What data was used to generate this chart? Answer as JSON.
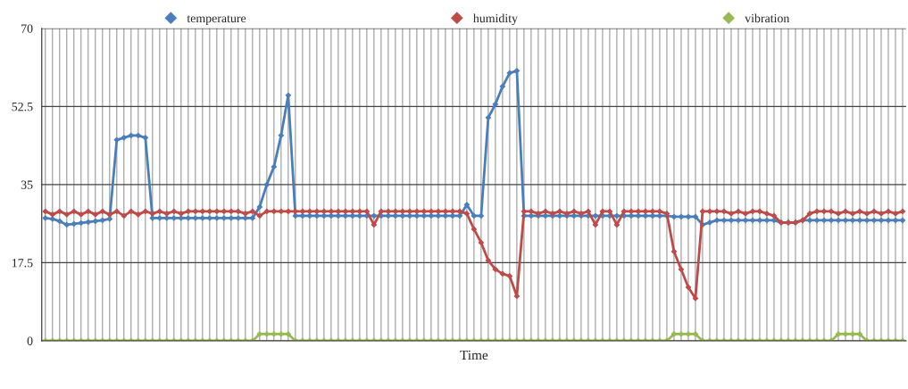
{
  "chart_data": {
    "type": "line",
    "xlabel": "Time",
    "categories": [
      null,
      null,
      null,
      null,
      null,
      null,
      null,
      null,
      null,
      null,
      null,
      null,
      null,
      null,
      null,
      null,
      null,
      null,
      null,
      null,
      null,
      null,
      null,
      null,
      null,
      null,
      null,
      null,
      null,
      null,
      null,
      null,
      null,
      null,
      null,
      null,
      null,
      null,
      null,
      null,
      null,
      null,
      null,
      null,
      null,
      null,
      null,
      null,
      null,
      null,
      null,
      null,
      null,
      null,
      null,
      null,
      null,
      null,
      null,
      null,
      null,
      null,
      null,
      null,
      null,
      null,
      null,
      null,
      null,
      null,
      null,
      null,
      null,
      null,
      null,
      null,
      null,
      null,
      null,
      null,
      null,
      null,
      null,
      null,
      null,
      null,
      null,
      null,
      null,
      null,
      null,
      null,
      null,
      null,
      null,
      null,
      null,
      null,
      null,
      null,
      null,
      null,
      null,
      null,
      null,
      null,
      null,
      null,
      null,
      null,
      null,
      null,
      null,
      null,
      null,
      null,
      null,
      null,
      null,
      null,
      null
    ],
    "series": [
      {
        "name": "temperature",
        "color": "#4a7ebb",
        "values": [
          27.5,
          27.3,
          26.8,
          26,
          26.2,
          26.4,
          26.6,
          26.8,
          27,
          27.3,
          45,
          45.5,
          46,
          46,
          45.5,
          27.5,
          27.5,
          27.5,
          27.5,
          27.5,
          27.5,
          27.5,
          27.5,
          27.5,
          27.5,
          27.5,
          27.5,
          27.5,
          27.5,
          27.5,
          30,
          35,
          39,
          46,
          55,
          28,
          28,
          28,
          28,
          28,
          28,
          28,
          28,
          28,
          28,
          28,
          28,
          28,
          28,
          28,
          28,
          28,
          28,
          28,
          28,
          28,
          28,
          28,
          28,
          30.5,
          28,
          28,
          50,
          53,
          57,
          60,
          60.5,
          28,
          28,
          28,
          28,
          28,
          28,
          28,
          28,
          28,
          28,
          28,
          28,
          28,
          28,
          28,
          28,
          28,
          28,
          28,
          28,
          28,
          27.8,
          27.8,
          27.8,
          27.8,
          26,
          26.5,
          27,
          27,
          27,
          27,
          27,
          27,
          27,
          27,
          27,
          26.5,
          26.5,
          26.5,
          27,
          27,
          27,
          27,
          27,
          27,
          27,
          27,
          27,
          27,
          27,
          27,
          27,
          27,
          27
        ]
      },
      {
        "name": "humidity",
        "color": "#be4b48",
        "values": [
          29,
          28.3,
          29,
          28.3,
          29,
          28.3,
          29,
          28.3,
          29,
          28.3,
          29,
          28,
          29,
          28.3,
          29,
          28.5,
          29,
          28.5,
          29,
          28.5,
          29,
          29,
          29,
          29,
          29,
          29,
          29,
          29,
          28.5,
          29,
          28,
          29,
          29,
          29,
          29,
          29,
          29,
          29,
          29,
          29,
          29,
          29,
          29,
          29,
          29,
          29,
          26,
          29,
          29,
          29,
          29,
          29,
          29,
          29,
          29,
          29,
          29,
          29,
          29,
          28.5,
          25,
          22,
          18,
          16,
          15,
          14.5,
          10,
          29,
          29,
          28.5,
          29,
          28.5,
          29,
          28.5,
          29,
          28.5,
          29,
          26,
          29,
          29,
          26,
          29,
          29,
          29,
          29,
          29,
          29,
          28.5,
          20,
          16,
          12,
          9.5,
          29,
          29,
          29,
          29,
          28.5,
          29,
          28.5,
          29,
          29,
          28.5,
          28,
          26.5,
          26.5,
          26.5,
          27,
          28.5,
          29,
          29,
          29,
          28.5,
          29,
          28.5,
          29,
          28.5,
          29,
          28.5,
          29,
          28.5,
          29
        ]
      },
      {
        "name": "vibration",
        "color": "#98b954",
        "values": [
          0,
          0,
          0,
          0,
          0,
          0,
          0,
          0,
          0,
          0,
          0,
          0,
          0,
          0,
          0,
          0,
          0,
          0,
          0,
          0,
          0,
          0,
          0,
          0,
          0,
          0,
          0,
          0,
          0,
          0,
          1.5,
          1.5,
          1.5,
          1.5,
          1.5,
          0,
          0,
          0,
          0,
          0,
          0,
          0,
          0,
          0,
          0,
          0,
          0,
          0,
          0,
          0,
          0,
          0,
          0,
          0,
          0,
          0,
          0,
          0,
          0,
          0,
          0,
          0,
          0,
          0,
          0,
          0,
          0,
          0,
          0,
          0,
          0,
          0,
          0,
          0,
          0,
          0,
          0,
          0,
          0,
          0,
          0,
          0,
          0,
          0,
          0,
          0,
          0,
          0,
          1.5,
          1.5,
          1.5,
          1.5,
          0,
          0,
          0,
          0,
          0,
          0,
          0,
          0,
          0,
          0,
          0,
          0,
          0,
          0,
          0,
          0,
          0,
          0,
          0,
          1.5,
          1.5,
          1.5,
          1.5,
          0,
          0,
          0,
          0,
          0,
          0
        ]
      }
    ],
    "ylim": [
      0,
      70
    ],
    "yticks": [
      0,
      17.5,
      35,
      52.5,
      70
    ],
    "grid": true,
    "legend": "top",
    "marker": "diamond",
    "line_style": "solid"
  }
}
